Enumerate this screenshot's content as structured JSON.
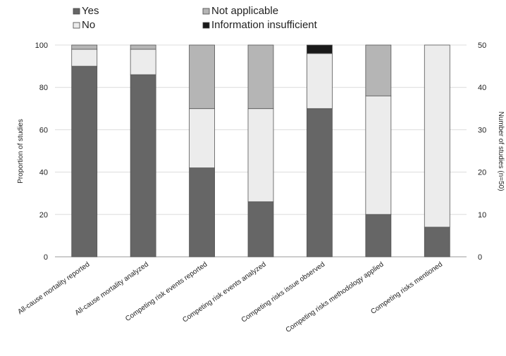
{
  "chart_data": {
    "type": "bar",
    "stacked": true,
    "categories": [
      "All-cause mortality reported",
      "All-cause mortality analyzed",
      "Competing risk events reported",
      "Competing risk events analyzed",
      "Competing risks issue observed",
      "Competing risks methodology applied",
      "Competing risks mentioned"
    ],
    "series": [
      {
        "name": "Yes",
        "color": "#666666",
        "values": [
          90,
          86,
          42,
          26,
          70,
          20,
          14
        ]
      },
      {
        "name": "No",
        "color": "#ececec",
        "values": [
          8,
          12,
          28,
          44,
          26,
          56,
          86
        ]
      },
      {
        "name": "Not applicable",
        "color": "#b5b5b5",
        "values": [
          2,
          2,
          30,
          30,
          0,
          24,
          0
        ]
      },
      {
        "name": "Information insufficient",
        "color": "#1a1a1a",
        "values": [
          0,
          0,
          0,
          0,
          4,
          0,
          0
        ]
      }
    ],
    "ylabel": "Proportion of studies",
    "ylabel_right": "Number of studies (n=50)",
    "ylim": [
      0,
      100
    ],
    "yticks": [
      "0",
      "20",
      "40",
      "60",
      "80",
      "100"
    ],
    "ylim_right": [
      0,
      50
    ],
    "yticks_right": [
      "0",
      "10",
      "20",
      "30",
      "40",
      "50"
    ],
    "grid": true,
    "legend_position": "top-left"
  }
}
